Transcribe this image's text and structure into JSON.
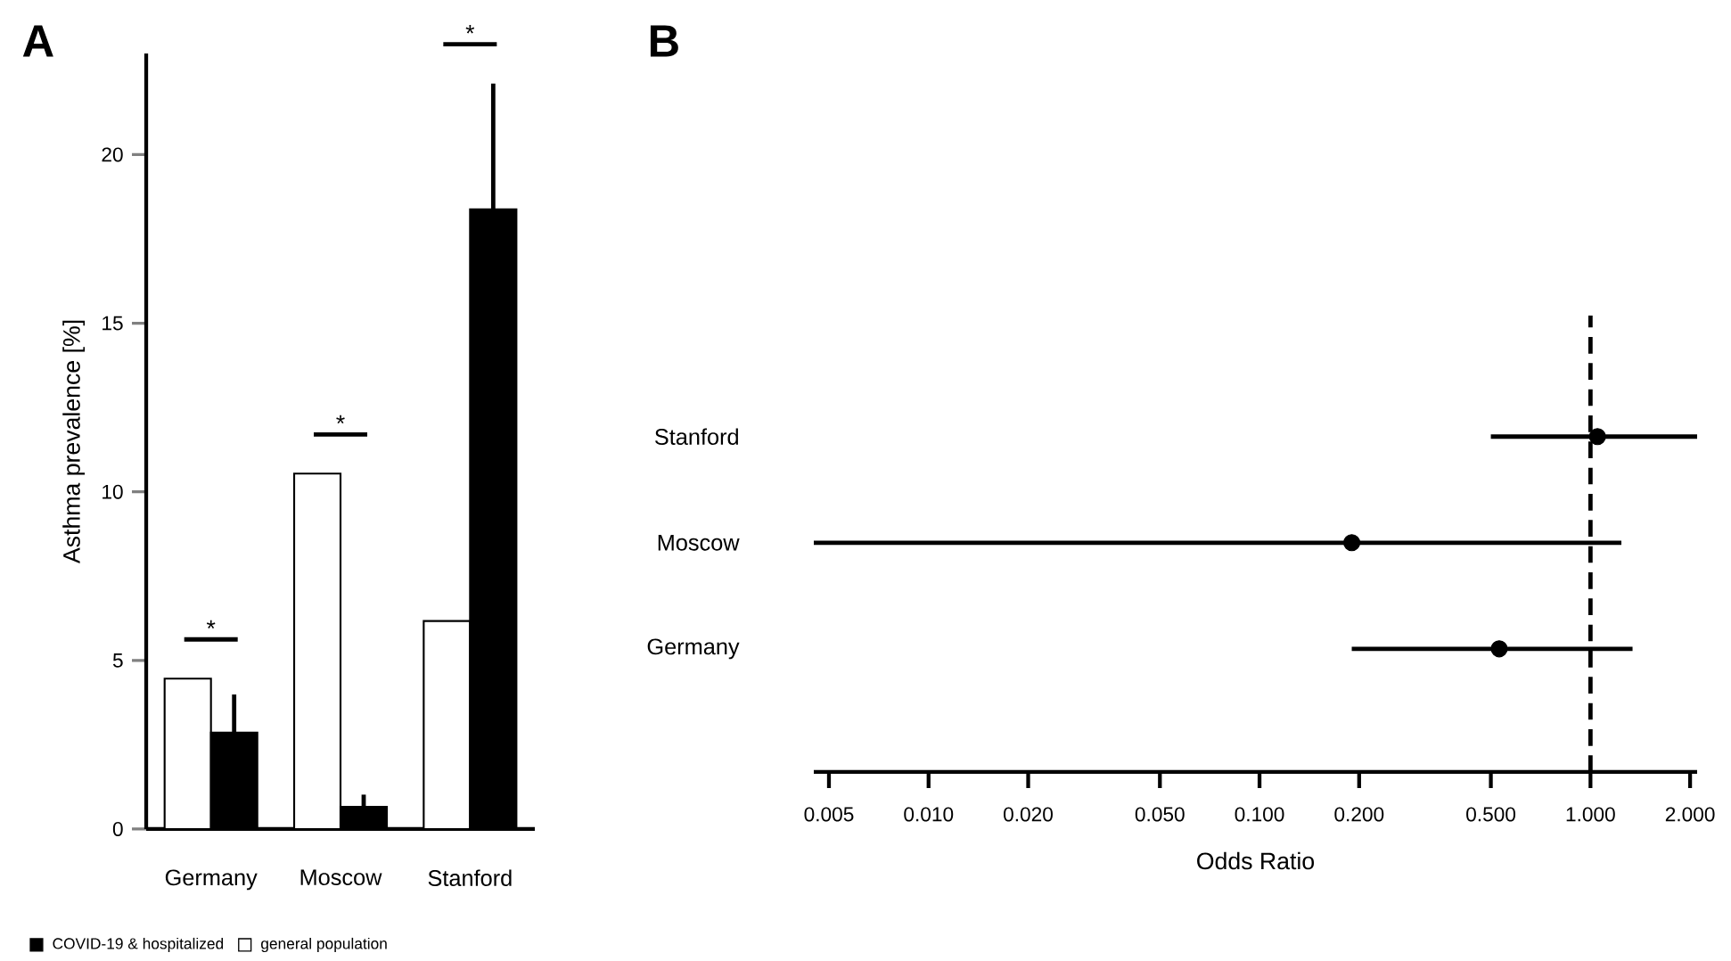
{
  "chart_data": [
    {
      "type": "bar",
      "title": "A",
      "ylabel": "Asthma prevalence [%]",
      "categories": [
        "Germany",
        "Moscow",
        "Stanford"
      ],
      "series": [
        {
          "name": "general population",
          "color": "#ffffff",
          "values": [
            4.46,
            10.54,
            6.17
          ]
        },
        {
          "name": "COVID-19 & hospitalized",
          "color": "#000000",
          "values": [
            2.86,
            0.66,
            18.38
          ],
          "errors": [
            [
              2.86,
              3.99
            ],
            [
              0.66,
              1.02
            ],
            [
              18.38,
              22.11
            ]
          ]
        }
      ],
      "ylim": [
        0,
        23
      ],
      "yticks": [
        0,
        5,
        10,
        15,
        20
      ],
      "legend": "bottom",
      "annotations": [
        "*",
        "*",
        "*"
      ]
    },
    {
      "type": "scatter",
      "title": "B",
      "xlabel": "Odds Ratio",
      "orientation": "horizontal",
      "categories": [
        "Stanford",
        "Moscow",
        "Germany"
      ],
      "values": [
        1.05,
        0.19,
        0.53
      ],
      "errors": [
        [
          0.5,
          2.1
        ],
        [
          0.0045,
          1.24
        ],
        [
          0.19,
          1.34
        ]
      ],
      "color": "#000000",
      "marker": "circle",
      "log": "x",
      "xlim": [
        0.0045,
        2.1
      ],
      "xticks": [
        0.005,
        {
          "value": 0.01,
          "label": "0.010"
        },
        {
          "value": 0.02,
          "label": "0.020"
        },
        {
          "value": 0.05,
          "label": "0.050"
        },
        {
          "value": 0.1,
          "label": "0.100"
        },
        {
          "value": 0.2,
          "label": "0.200"
        },
        {
          "value": 0.5,
          "label": "0.500"
        },
        {
          "value": 1,
          "label": "1.000"
        },
        {
          "value": 2,
          "label": "2.000"
        }
      ],
      "ref_lines": [
        {
          "axis": "x",
          "value": 1,
          "line_style": "dashed"
        }
      ]
    }
  ]
}
